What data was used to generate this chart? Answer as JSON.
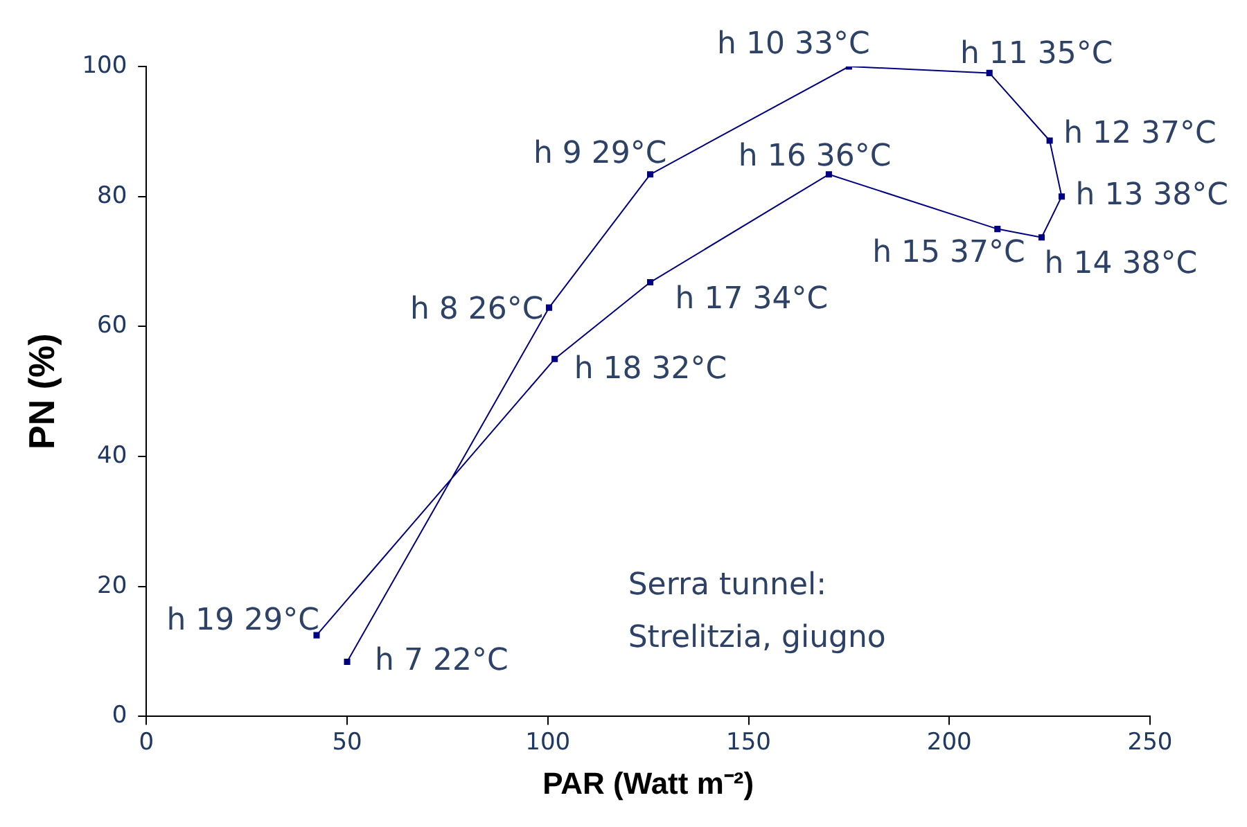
{
  "chart_data": {
    "type": "line",
    "xlabel": "PAR (Watt m⁻²)",
    "ylabel": "PN (%)",
    "series": [
      {
        "color": "#000080",
        "x": [
          50,
          100.3,
          125.5,
          175,
          210,
          225,
          228,
          223,
          212,
          170,
          125.5,
          101.7,
          42.4
        ],
        "values": [
          8.4,
          62.9,
          83.4,
          100,
          99,
          88.6,
          80,
          73.7,
          75,
          83.4,
          66.8,
          55,
          12.5
        ]
      }
    ],
    "xlim": [
      0,
      250
    ],
    "xticks": [
      0,
      50,
      100,
      150,
      200,
      250
    ],
    "ylim": [
      0,
      100
    ],
    "yticks": [
      0,
      20,
      40,
      60,
      80,
      100
    ],
    "grid": false,
    "legend": false,
    "marker": "square",
    "line_style": "solid",
    "annotations": [
      {
        "text": "h 7 22°C",
        "x": 50,
        "y": 8.4
      },
      {
        "text": "h 8 26°C",
        "x": 100.3,
        "y": 62.9
      },
      {
        "text": "h 9 29°C",
        "x": 125.5,
        "y": 83.4
      },
      {
        "text": "h 10 33°C",
        "x": 175,
        "y": 100
      },
      {
        "text": "h 11 35°C",
        "x": 210,
        "y": 99
      },
      {
        "text": "h 12 37°C",
        "x": 225,
        "y": 88.6
      },
      {
        "text": "h 13 38°C",
        "x": 228,
        "y": 80
      },
      {
        "text": "h 14 38°C",
        "x": 223,
        "y": 73.7
      },
      {
        "text": "h 15 37°C",
        "x": 212,
        "y": 75
      },
      {
        "text": "h 16 36°C",
        "x": 170,
        "y": 83.4
      },
      {
        "text": "h 17 34°C",
        "x": 125.5,
        "y": 66.8
      },
      {
        "text": "h 18 32°C",
        "x": 101.7,
        "y": 55
      },
      {
        "text": "h 19 29°C",
        "x": 42.4,
        "y": 12.5
      },
      "Serra tunnel:\nStrelitzia, giugno"
    ]
  }
}
